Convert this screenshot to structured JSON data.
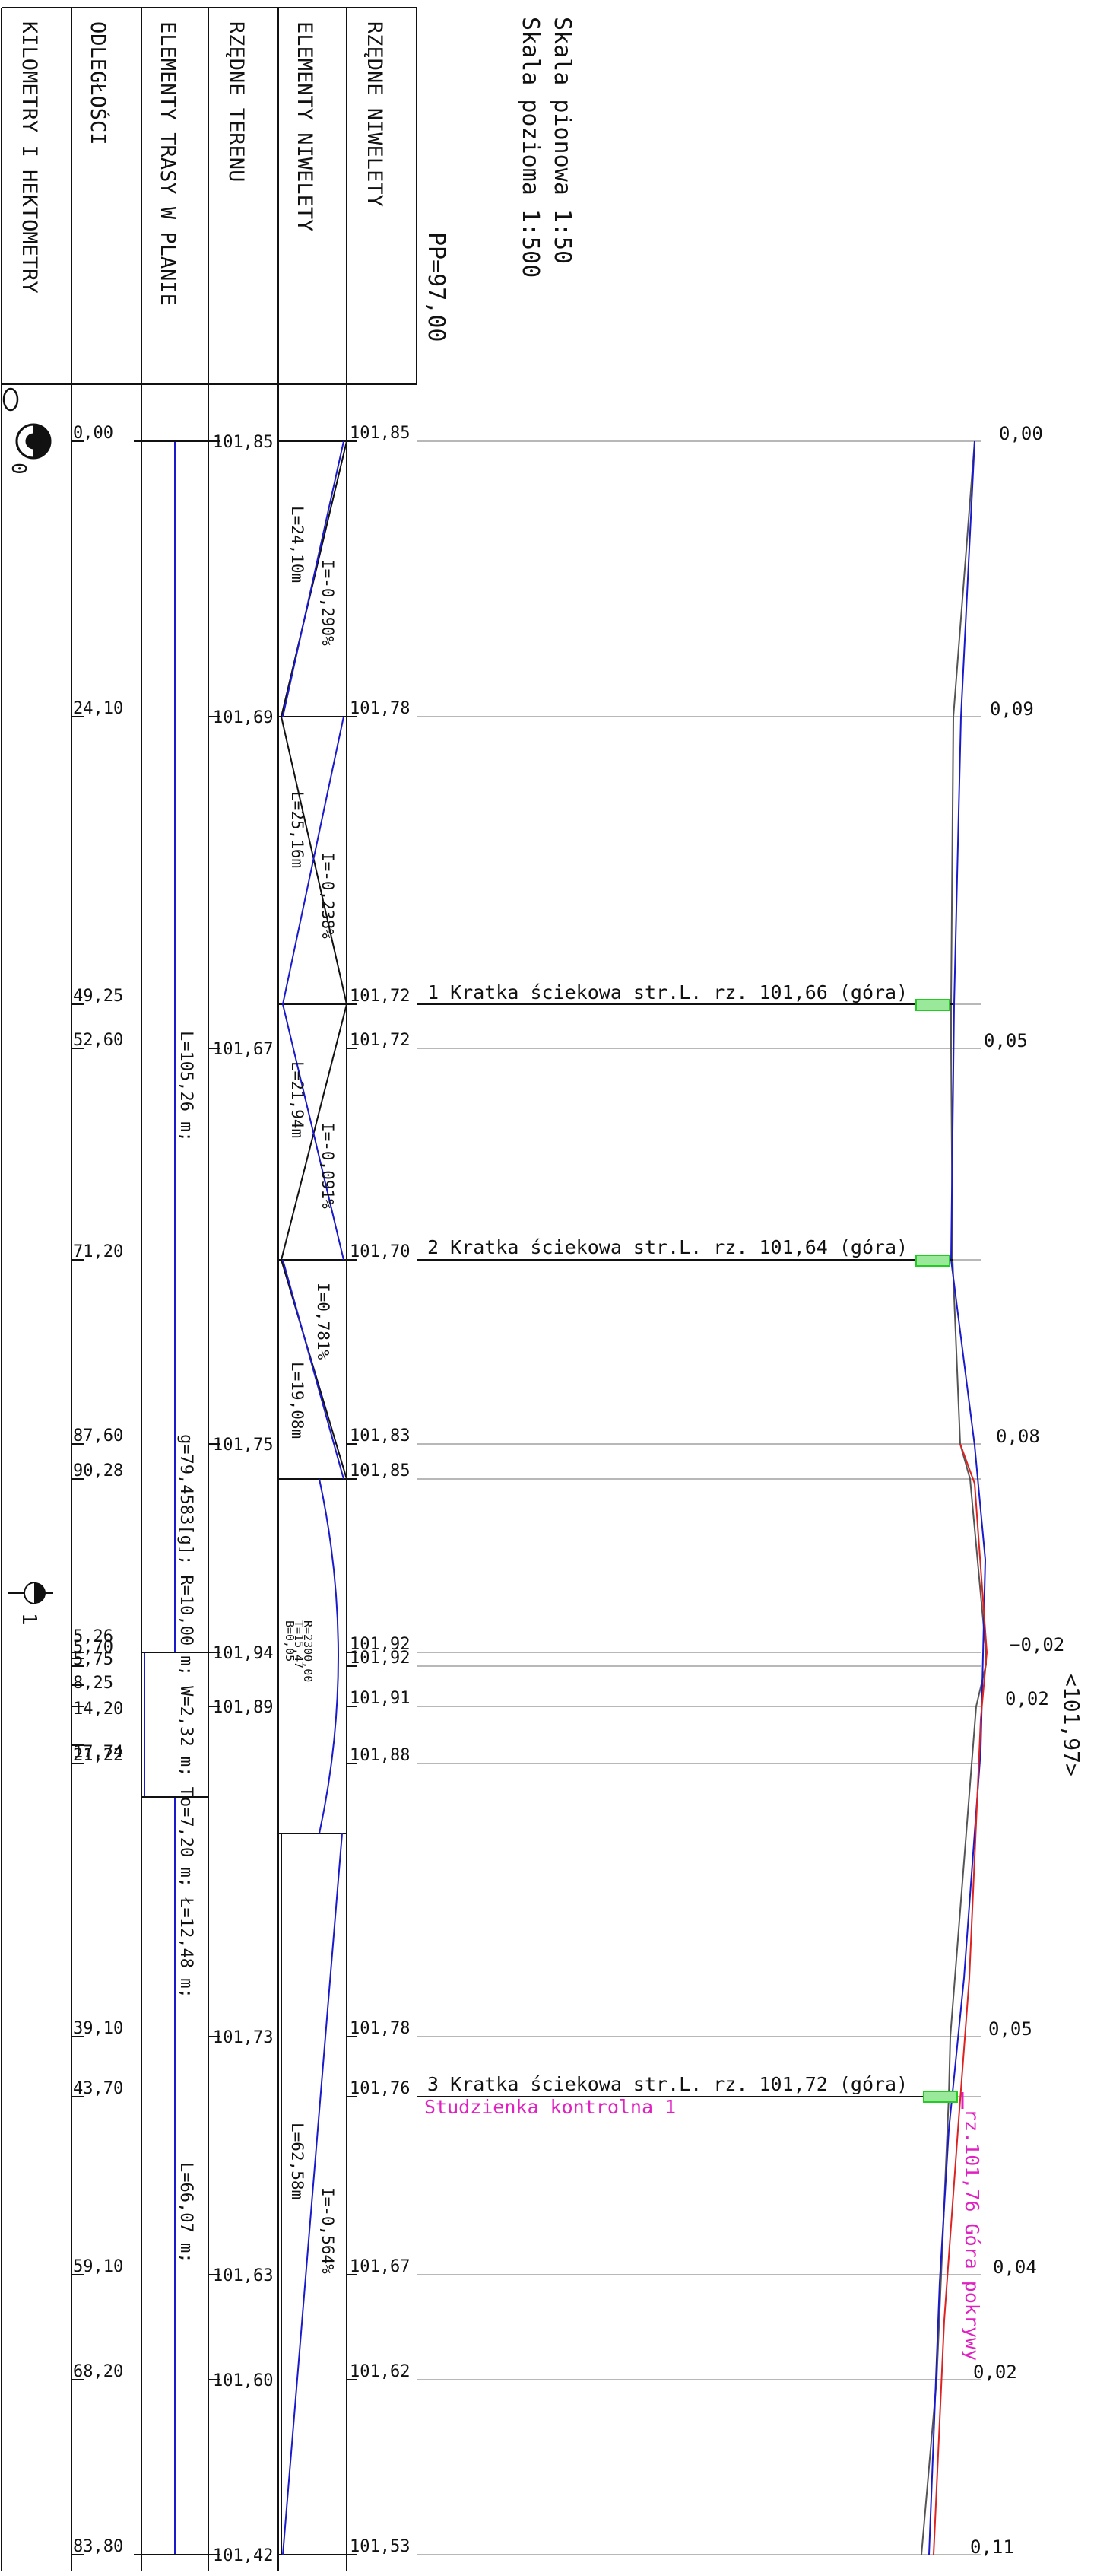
{
  "scale": {
    "vertical": "Skala pionowa 1:50",
    "horizontal": "Skala pozioma 1:500"
  },
  "datum": "PP=97,00",
  "header": {
    "col_km": "KILOMETRY I HEKTOMETRY",
    "col_dist": "ODLEGŁOŚCI",
    "col_plan": "ELEMENTY TRASY W PLANIE",
    "col_terrain": "RZĘDNE TERENU",
    "col_grade": "ELEMENTY NIWELETY",
    "col_grade_elev": "RZĘDNE NIWELETY"
  },
  "km_markers": {
    "km0_label": "0",
    "km0_sub": "0",
    "hm1_label": "1"
  },
  "rows": [
    {
      "dist": "0,00",
      "terrain": "101,85",
      "grade": "101,85",
      "diff": "0,00"
    },
    {
      "dist": "24,10",
      "terrain": "101,69",
      "grade": "101,78",
      "diff": "0,09"
    },
    {
      "dist": "49,25",
      "terrain": "",
      "grade": "101,72",
      "diff": ""
    },
    {
      "dist": "52,60",
      "terrain": "101,67",
      "grade": "101,72",
      "diff": "0,05"
    },
    {
      "dist": "71,20",
      "terrain": "",
      "grade": "101,70",
      "diff": ""
    },
    {
      "dist": "87,60",
      "terrain": "101,75",
      "grade": "101,83",
      "diff": "0,08"
    },
    {
      "dist": "90,28",
      "terrain": "",
      "grade": "101,85",
      "diff": ""
    },
    {
      "dist": "5,26",
      "terrain": "101,94",
      "grade": "101,92",
      "diff": "−0,02"
    },
    {
      "dist": "5,70",
      "terrain": "",
      "grade": "",
      "diff": ""
    },
    {
      "dist": "5,75",
      "terrain": "",
      "grade": "101,92",
      "diff": ""
    },
    {
      "dist": "8,25",
      "terrain": "",
      "grade": "",
      "diff": ""
    },
    {
      "dist": "14,20",
      "terrain": "101,89",
      "grade": "101,91",
      "diff": "0,02"
    },
    {
      "dist": "17,74",
      "terrain": "",
      "grade": "",
      "diff": ""
    },
    {
      "dist": "21,22",
      "terrain": "",
      "grade": "101,88",
      "diff": ""
    },
    {
      "dist": "39,10",
      "terrain": "101,73",
      "grade": "101,78",
      "diff": "0,05"
    },
    {
      "dist": "43,70",
      "terrain": "",
      "grade": "101,76",
      "diff": ""
    },
    {
      "dist": "59,10",
      "terrain": "101,63",
      "grade": "101,67",
      "diff": "0,04"
    },
    {
      "dist": "68,20",
      "terrain": "101,60",
      "grade": "101,62",
      "diff": "0,02"
    },
    {
      "dist": "83,80",
      "terrain": "101,42",
      "grade": "101,53",
      "diff": "0,11"
    }
  ],
  "grade_segments": [
    {
      "length": "L=24,10m",
      "slope": "I=-0,290%"
    },
    {
      "length": "L=25,16m",
      "slope": "I=-0,238%"
    },
    {
      "length": "L=21,94m",
      "slope": "I=-0,091%"
    },
    {
      "length": "L=19,08m",
      "slope": "I=0,781%"
    },
    {
      "length": "L=62,58m",
      "slope": "I=-0,564%"
    }
  ],
  "vertical_curve": {
    "R": "R=2300,00",
    "T": "T=15,47",
    "B": "B=0,05"
  },
  "plan": {
    "straight1": "L=105,26 m;",
    "arc": "g=79,4583[g]; R=10,00 m; W=2,32 m; To=7,20 m; Ł=12,48 m;",
    "straight2": "L=66,07 m;"
  },
  "structures": [
    {
      "label": "1 Kratka ściekowa str.L. rz. 101,66 (góra)"
    },
    {
      "label": "2 Kratka ściekowa str.L. rz. 101,64 (góra)"
    },
    {
      "label": "3 Kratka ściekowa str.L. rz. 101,72 (góra)"
    }
  ],
  "manhole": {
    "name": "Studzienka kontrolna 1",
    "cover": "rz.101,76 Góra pokrywy"
  },
  "peak_label": "<101,97>",
  "colors": {
    "line": "#111111",
    "grid": "#b8b8b8",
    "grade": "#1a1acc",
    "terrain": "#555555",
    "red": "#dd2222",
    "magenta": "#e020c0",
    "green": "#22cc22"
  }
}
